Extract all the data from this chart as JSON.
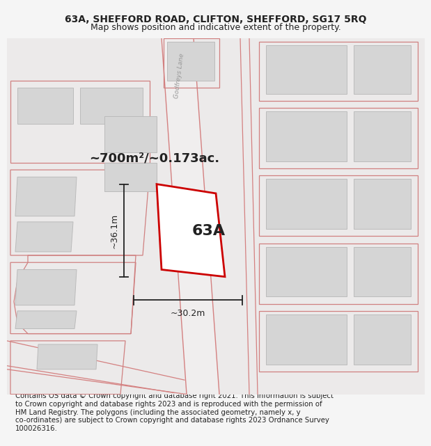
{
  "title_line1": "63A, SHEFFORD ROAD, CLIFTON, SHEFFORD, SG17 5RQ",
  "title_line2": "Map shows position and indicative extent of the property.",
  "footer_text": "Contains OS data © Crown copyright and database right 2021. This information is subject\nto Crown copyright and database rights 2023 and is reproduced with the permission of\nHM Land Registry. The polygons (including the associated geometry, namely x, y\nco-ordinates) are subject to Crown copyright and database rights 2023 Ordnance Survey\n100026316.",
  "area_label": "~700m²/~0.173ac.",
  "label_63a": "63A",
  "dim_width": "~30.2m",
  "dim_height": "~36.1m",
  "road_label": "Godfreys Lane",
  "bg_color": "#eceaea",
  "plot_color_fill": "#ffffff",
  "plot_color_edge": "#cc0000",
  "building_fill": "#d5d5d5",
  "building_edge": "#bbbbbb",
  "road_line_color": "#d48080",
  "outline_color": "#d08080",
  "dim_line_color": "#222222",
  "text_color": "#222222",
  "title_fontsize": 10,
  "footer_fontsize": 7.3,
  "area_fontsize": 13,
  "label_fontsize": 16
}
